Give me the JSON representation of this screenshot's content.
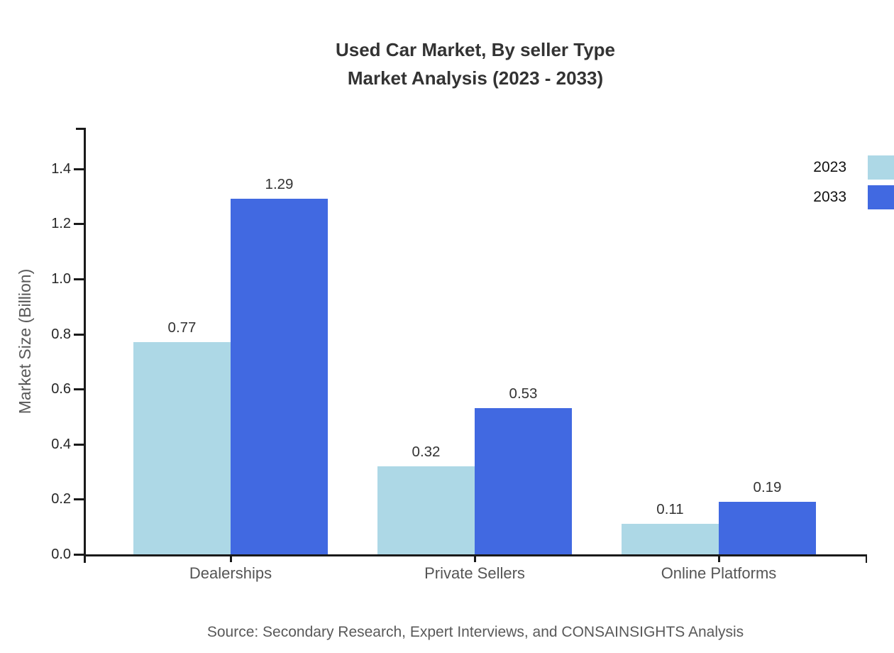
{
  "title": {
    "line1": "Used Car Market, By seller Type",
    "line2": "Market Analysis (2023 - 2033)"
  },
  "source": "Source: Secondary Research, Expert Interviews, and CONSAINSIGHTS Analysis",
  "axes": {
    "y_label": "Market Size (Billion)",
    "y_tick_labels": [
      "0.0",
      "0.2",
      "0.4",
      "0.6",
      "0.8",
      "1.0",
      "1.2",
      "1.4"
    ],
    "x_tick_labels": [
      "Dealerships",
      "Private Sellers",
      "Online Platforms"
    ]
  },
  "legend": {
    "position": "upper-right",
    "entries": [
      {
        "label": "2023",
        "color": "#ADD8E6"
      },
      {
        "label": "2033",
        "color": "#4169E1"
      }
    ]
  },
  "colors": {
    "series_2023": "#ADD8E6",
    "series_2033": "#4169E1",
    "axis": "#1a1a1a",
    "title_text": "#333333",
    "gray_text": "#555555"
  },
  "chart_data": {
    "type": "bar",
    "categories": [
      "Dealerships",
      "Private Sellers",
      "Online Platforms"
    ],
    "series": [
      {
        "name": "2023",
        "color": "#ADD8E6",
        "values": [
          0.77,
          0.32,
          0.11
        ]
      },
      {
        "name": "2033",
        "color": "#4169E1",
        "values": [
          1.29,
          0.53,
          0.19
        ]
      }
    ],
    "title": "Used Car Market, By seller Type Market Analysis (2023 - 2033)",
    "xlabel": "",
    "ylabel": "Market Size (Billion)",
    "ylim": [
      0,
      1.55
    ],
    "yticks": [
      0.0,
      0.2,
      0.4,
      0.6,
      0.8,
      1.0,
      1.2,
      1.4
    ],
    "grid": false,
    "value_labels": true,
    "legend_position": "upper-right"
  }
}
